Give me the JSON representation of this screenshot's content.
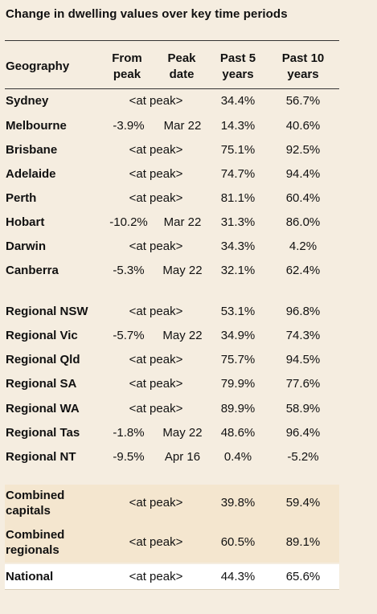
{
  "title": "Change in dwelling values over key time periods",
  "headers": {
    "geography": "Geography",
    "from_peak_1": "From",
    "from_peak_2": "peak",
    "peak_date_1": "Peak",
    "peak_date_2": "date",
    "past5_1": "Past 5",
    "past5_2": "years",
    "past10_1": "Past 10",
    "past10_2": "years"
  },
  "rows": [
    {
      "name": "Sydney",
      "from_peak": "",
      "peak_date": "",
      "at_peak": "<at peak>",
      "past5": "34.4%",
      "past10": "56.7%"
    },
    {
      "name": "Melbourne",
      "from_peak": "-3.9%",
      "peak_date": "Mar 22",
      "at_peak": "",
      "past5": "14.3%",
      "past10": "40.6%"
    },
    {
      "name": "Brisbane",
      "from_peak": "",
      "peak_date": "",
      "at_peak": "<at peak>",
      "past5": "75.1%",
      "past10": "92.5%"
    },
    {
      "name": "Adelaide",
      "from_peak": "",
      "peak_date": "",
      "at_peak": "<at peak>",
      "past5": "74.7%",
      "past10": "94.4%"
    },
    {
      "name": "Perth",
      "from_peak": "",
      "peak_date": "",
      "at_peak": "<at peak>",
      "past5": "81.1%",
      "past10": "60.4%"
    },
    {
      "name": "Hobart",
      "from_peak": "-10.2%",
      "peak_date": "Mar 22",
      "at_peak": "",
      "past5": "31.3%",
      "past10": "86.0%"
    },
    {
      "name": "Darwin",
      "from_peak": "",
      "peak_date": "",
      "at_peak": "<at peak>",
      "past5": "34.3%",
      "past10": "4.2%"
    },
    {
      "name": "Canberra",
      "from_peak": "-5.3%",
      "peak_date": "May 22",
      "at_peak": "",
      "past5": "32.1%",
      "past10": "62.4%"
    },
    {
      "name": "Regional NSW",
      "from_peak": "",
      "peak_date": "",
      "at_peak": "<at peak>",
      "past5": "53.1%",
      "past10": "96.8%"
    },
    {
      "name": "Regional Vic",
      "from_peak": "-5.7%",
      "peak_date": "May 22",
      "at_peak": "",
      "past5": "34.9%",
      "past10": "74.3%"
    },
    {
      "name": "Regional Qld",
      "from_peak": "",
      "peak_date": "",
      "at_peak": "<at peak>",
      "past5": "75.7%",
      "past10": "94.5%"
    },
    {
      "name": "Regional SA",
      "from_peak": "",
      "peak_date": "",
      "at_peak": "<at peak>",
      "past5": "79.9%",
      "past10": "77.6%"
    },
    {
      "name": "Regional WA",
      "from_peak": "",
      "peak_date": "",
      "at_peak": "<at peak>",
      "past5": "89.9%",
      "past10": "58.9%"
    },
    {
      "name": "Regional Tas",
      "from_peak": "-1.8%",
      "peak_date": "May 22",
      "at_peak": "",
      "past5": "48.6%",
      "past10": "96.4%"
    },
    {
      "name": "Regional NT",
      "from_peak": "-9.5%",
      "peak_date": "Apr 16",
      "at_peak": "",
      "past5": "0.4%",
      "past10": "-5.2%"
    }
  ],
  "summary": [
    {
      "name_1": "Combined",
      "name_2": "capitals",
      "at_peak": "<at peak>",
      "past5": "39.8%",
      "past10": "59.4%"
    },
    {
      "name_1": "Combined",
      "name_2": "regionals",
      "at_peak": "<at peak>",
      "past5": "60.5%",
      "past10": "89.1%"
    }
  ],
  "national": {
    "name": "National",
    "at_peak": "<at peak>",
    "past5": "44.3%",
    "past10": "65.6%"
  },
  "colors": {
    "background": "#f5ede0",
    "summary_band": "#f4e6cf",
    "national_band": "#ffffff"
  }
}
